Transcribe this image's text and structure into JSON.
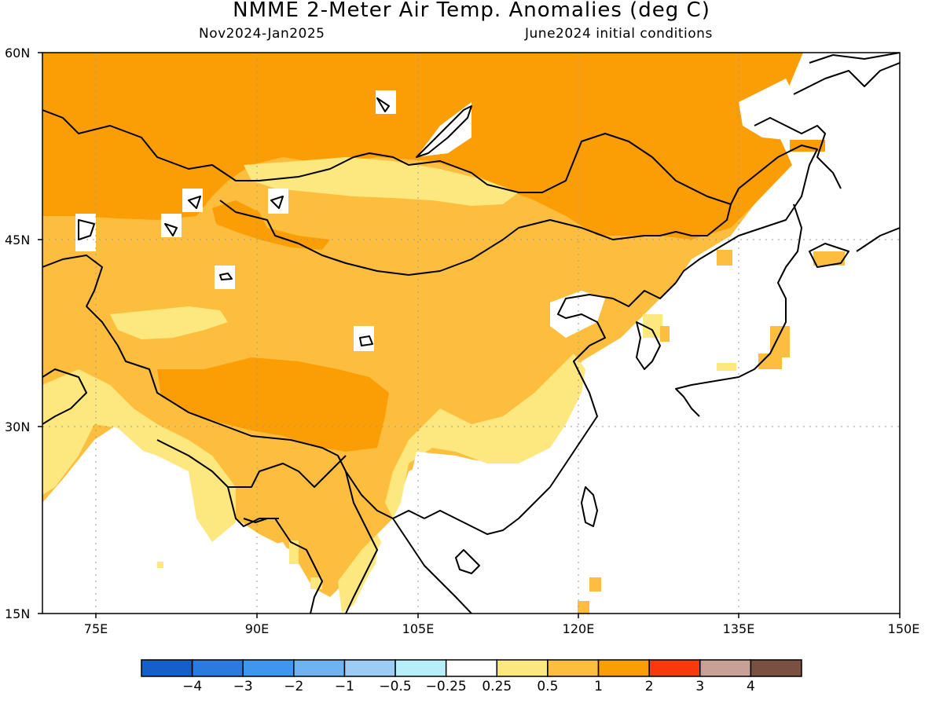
{
  "title": "NMME 2-Meter Air Temp. Anomalies (deg C)",
  "subtitle_left": "Nov2024-Jan2025",
  "subtitle_right": "June2024 initial conditions",
  "map": {
    "lat_range": [
      "15N",
      "60N"
    ],
    "lon_range": [
      "70E",
      "150E"
    ],
    "lat_ticks": [
      "60N",
      "45N",
      "30N",
      "15N"
    ],
    "lon_ticks": [
      "75E",
      "90E",
      "105E",
      "120E",
      "135E",
      "150E"
    ],
    "grid": "dotted",
    "region": "East and Central Asia"
  },
  "colorbar": {
    "labels": [
      "-4",
      "-3",
      "-2",
      "-1",
      "-0.5",
      "-0.25",
      "0.25",
      "0.5",
      "1",
      "2",
      "3",
      "4"
    ],
    "colors": [
      "#1560c8",
      "#2a7be0",
      "#3f96ee",
      "#6fb3f2",
      "#9ccbf5",
      "#b6eefa",
      "#ffffff",
      "#fde77f",
      "#fdbe3f",
      "#fb9e06",
      "#f83a0a",
      "#c8a096",
      "#7a5040"
    ]
  },
  "legend_colors": {
    "light_yellow": "#fde77f",
    "light_orange": "#fdbe3f",
    "orange": "#fb9e06"
  }
}
